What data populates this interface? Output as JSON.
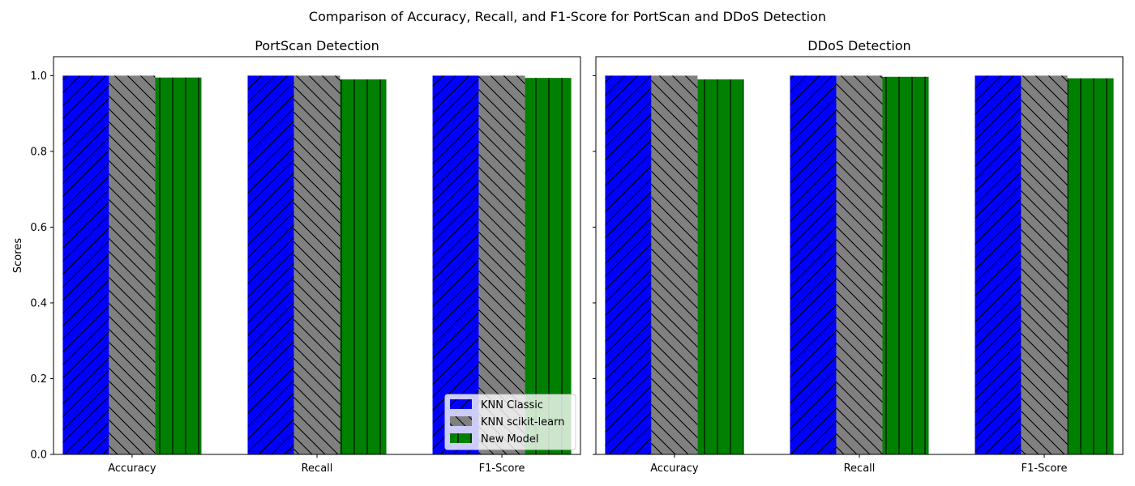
{
  "figure_title": "Comparison of Accuracy, Recall, and F1-Score for PortScan and DDoS Detection",
  "colors": {
    "KNN Classic": "#0000ff",
    "KNN scikit-learn": "#808080",
    "New Model": "#008000"
  },
  "hatches": {
    "KNN Classic": "diagonal-forward",
    "KNN scikit-learn": "diagonal-backward",
    "New Model": "vertical"
  },
  "chart_data": [
    {
      "type": "bar",
      "title": "PortScan Detection",
      "xlabel": "",
      "ylabel": "Scores",
      "ylim": [
        0,
        1.05
      ],
      "yticks": [
        "0.0",
        "0.2",
        "0.4",
        "0.6",
        "0.8",
        "1.0"
      ],
      "grid": false,
      "categories": [
        "Accuracy",
        "Recall",
        "F1-Score"
      ],
      "series": [
        {
          "name": "KNN Classic",
          "values": [
            1.0,
            1.0,
            1.0
          ]
        },
        {
          "name": "KNN scikit-learn",
          "values": [
            1.0,
            1.0,
            1.0
          ]
        },
        {
          "name": "New Model",
          "values": [
            0.995,
            0.99,
            0.994
          ]
        }
      ],
      "legend": {
        "position": "lower-right",
        "entries": [
          "KNN Classic",
          "KNN scikit-learn",
          "New Model"
        ]
      }
    },
    {
      "type": "bar",
      "title": "DDoS Detection",
      "xlabel": "",
      "ylabel": "",
      "ylim": [
        0,
        1.05
      ],
      "yticks": [
        "0.0",
        "0.2",
        "0.4",
        "0.6",
        "0.8",
        "1.0"
      ],
      "grid": false,
      "categories": [
        "Accuracy",
        "Recall",
        "F1-Score"
      ],
      "series": [
        {
          "name": "KNN Classic",
          "values": [
            1.0,
            1.0,
            1.0
          ]
        },
        {
          "name": "KNN scikit-learn",
          "values": [
            1.0,
            1.0,
            1.0
          ]
        },
        {
          "name": "New Model",
          "values": [
            0.99,
            0.997,
            0.993
          ]
        }
      ]
    }
  ]
}
